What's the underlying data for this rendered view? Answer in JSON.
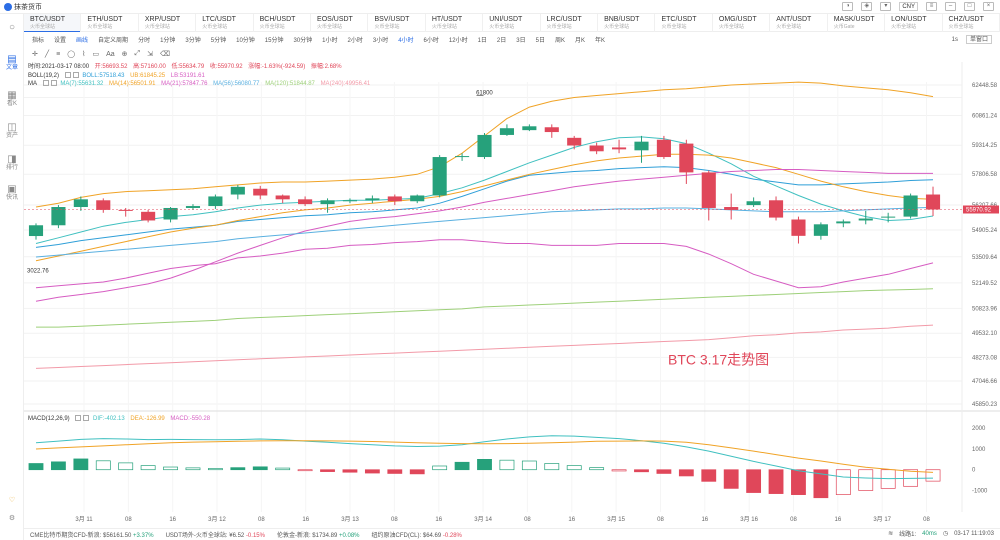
{
  "app": {
    "name": "抹茶货币"
  },
  "window": {
    "currency": "CNY"
  },
  "tabs": [
    {
      "name": "BTC/USDT",
      "sub": "火币全球站",
      "active": true
    },
    {
      "name": "ETH/USDT",
      "sub": "火币全球站"
    },
    {
      "name": "XRP/USDT",
      "sub": "火币全球站"
    },
    {
      "name": "LTC/USDT",
      "sub": "火币全球站"
    },
    {
      "name": "BCH/USDT",
      "sub": "火币全球站"
    },
    {
      "name": "EOS/USDT",
      "sub": "火币全球站"
    },
    {
      "name": "BSV/USDT",
      "sub": "火币全球站"
    },
    {
      "name": "HT/USDT",
      "sub": "火币全球站"
    },
    {
      "name": "UNI/USDT",
      "sub": "火币全球站"
    },
    {
      "name": "LRC/USDT",
      "sub": "火币全球站"
    },
    {
      "name": "BNB/USDT",
      "sub": "火币全球站"
    },
    {
      "name": "ETC/USDT",
      "sub": "火币全球站"
    },
    {
      "name": "OMG/USDT",
      "sub": "火币全球站"
    },
    {
      "name": "ANT/USDT",
      "sub": "火币全球站"
    },
    {
      "name": "MASK/USDT",
      "sub": "火币Gate"
    },
    {
      "name": "LON/USDT",
      "sub": "火币全球站"
    },
    {
      "name": "CHZ/USDT",
      "sub": "火币全球站"
    }
  ],
  "leftnav": [
    {
      "icon": "○",
      "label": ""
    },
    {
      "icon": "▤",
      "label": "文章",
      "active": true
    },
    {
      "icon": "▦",
      "label": "看K"
    },
    {
      "icon": "◫",
      "label": "资产"
    },
    {
      "icon": "◨",
      "label": "排行"
    },
    {
      "icon": "▣",
      "label": "快讯"
    }
  ],
  "toolbar": {
    "items": [
      "指标",
      "设置",
      "画线"
    ],
    "custom": "自定义周期",
    "timeframes": [
      "分时",
      "1分钟",
      "3分钟",
      "5分钟",
      "10分钟",
      "15分钟",
      "30分钟",
      "1小时",
      "2小时",
      "3小时",
      "4小时",
      "6小时",
      "12小时",
      "1日",
      "2日",
      "3日",
      "5日",
      "周K",
      "月K",
      "年K"
    ],
    "active_tf": "4小时",
    "right": {
      "interval": "1s",
      "mode": "单窗口"
    }
  },
  "drawtools": [
    "✛",
    "╱",
    "≡",
    "◯",
    "⌇",
    "▭",
    "Aa",
    "⊕",
    "⤢",
    "⇲",
    "⌫"
  ],
  "info": {
    "time": "时间:2021-03-17 08:00",
    "open": "开:56693.52",
    "high": "高:57160.00",
    "low": "低:55634.79",
    "close": "收:55970.92",
    "change": "涨幅:-1.63%(-924.59)",
    "amp": "振幅:2.68%",
    "boll_name": "BOLL(19,2)",
    "boll": "BOLL:57518.43",
    "ub": "UB:61845.25",
    "lb": "LB:53191.61",
    "ma_name": "MA",
    "ma7": "MA(7):55631.32",
    "ma14": "MA(14):56501.91",
    "ma21": "MA(21):57847.76",
    "ma56": "MA(56):56080.77",
    "ma120": "MA(120):51844.87",
    "ma240": "MA(240):49956.41",
    "macd_name": "MACD(12,26,9)",
    "dif": "DIF:-402.13",
    "dea": "DEA:-126.99",
    "macd": "MACD:-550.28"
  },
  "annotations": {
    "high_label": "61800",
    "low_label": "3022.76",
    "watermark": "BTC 3.17走势图",
    "current_price": "55970.92"
  },
  "colors": {
    "up": "#26a17b",
    "down": "#e0475a",
    "boll_mid": "#2f9fd8",
    "ub": "#f0a326",
    "lb": "#d65cc2",
    "ma7": "#40c0c0",
    "ma14": "#f0a326",
    "ma21": "#d65cc2",
    "ma56": "#5ab0e0",
    "ma120": "#9ed07a",
    "ma240": "#f29aa8"
  },
  "status": [
    {
      "label": "CME比特币期货CFD-新浪:",
      "price": "$56161.50",
      "chg": "+3.37%",
      "dir": "up"
    },
    {
      "label": "USDT场外-火币全球站:",
      "price": "¥6.52",
      "chg": "-0.15%",
      "dir": "dn"
    },
    {
      "label": "伦敦金-新浪:",
      "price": "$1734.89",
      "chg": "+0.08%",
      "dir": "up"
    },
    {
      "label": "纽约原油CFD(CL):",
      "price": "$64.69",
      "chg": "-0.28%",
      "dir": "dn"
    }
  ],
  "status_right": {
    "network": "线路1:",
    "latency": "40ms",
    "time": "03-17 11:19:03"
  },
  "chart_data": {
    "type": "candlestick",
    "y_ticks": [
      62448.58,
      61800,
      60861.24,
      59314.25,
      57806.58,
      56207.66,
      54905.24,
      53509.64,
      52149.52,
      50823.96,
      49532.1,
      48273.08,
      47046.66,
      45850.23
    ],
    "main_ylim": [
      45850.23,
      62448.58
    ],
    "x_ticks": [
      "3月 11",
      "08",
      "16",
      "3月 12",
      "08",
      "16",
      "3月 13",
      "08",
      "16",
      "3月 14",
      "08",
      "16",
      "3月 15",
      "08",
      "16",
      "3月 16",
      "08",
      "16",
      "3月 17",
      "08"
    ],
    "candles": [
      [
        54590,
        55150,
        54400,
        55250
      ],
      [
        55150,
        56100,
        55000,
        56200
      ],
      [
        56100,
        56500,
        55900,
        56650
      ],
      [
        56450,
        55950,
        55800,
        56550
      ],
      [
        55950,
        55900,
        55600,
        56050
      ],
      [
        55850,
        55400,
        55300,
        55950
      ],
      [
        55450,
        56050,
        55300,
        56100
      ],
      [
        56050,
        56150,
        55950,
        56250
      ],
      [
        56150,
        56650,
        56000,
        56750
      ],
      [
        56750,
        57150,
        56500,
        57250
      ],
      [
        57050,
        56700,
        56500,
        57200
      ],
      [
        56700,
        56500,
        56300,
        56750
      ],
      [
        56500,
        56250,
        56150,
        56650
      ],
      [
        56250,
        56450,
        55800,
        56550
      ],
      [
        56450,
        56450,
        56300,
        56550
      ],
      [
        56450,
        56550,
        56300,
        56700
      ],
      [
        56650,
        56400,
        56200,
        56750
      ],
      [
        56400,
        56700,
        56300,
        56750
      ],
      [
        56700,
        58700,
        56600,
        58800
      ],
      [
        58700,
        58750,
        58500,
        58900
      ],
      [
        58700,
        59850,
        58600,
        59950
      ],
      [
        59850,
        60200,
        59800,
        60400
      ],
      [
        60100,
        60300,
        60050,
        60400
      ],
      [
        60250,
        60000,
        59700,
        60400
      ],
      [
        59700,
        59300,
        59100,
        59800
      ],
      [
        59300,
        59000,
        58850,
        59450
      ],
      [
        59200,
        59100,
        58900,
        59600
      ],
      [
        59050,
        59500,
        58400,
        59800
      ],
      [
        59600,
        58700,
        58600,
        59800
      ],
      [
        59400,
        57900,
        57300,
        59600
      ],
      [
        57900,
        56050,
        55400,
        58000
      ],
      [
        56100,
        55950,
        55450,
        56800
      ],
      [
        56200,
        56400,
        56100,
        56600
      ],
      [
        56450,
        55550,
        55400,
        56650
      ],
      [
        55450,
        54600,
        54200,
        55600
      ],
      [
        54600,
        55200,
        54400,
        55300
      ],
      [
        55250,
        55350,
        55050,
        55450
      ],
      [
        55400,
        55500,
        55200,
        55900
      ],
      [
        55600,
        55600,
        55300,
        55800
      ],
      [
        55600,
        56700,
        55500,
        56800
      ],
      [
        56750,
        55970.92,
        55630,
        57160
      ]
    ],
    "boll_mid": [
      54000,
      54150,
      54350,
      54500,
      54650,
      54800,
      54950,
      55050,
      55150,
      55350,
      55450,
      55550,
      55650,
      55700,
      55800,
      55850,
      55950,
      56050,
      56300,
      56650,
      57050,
      57450,
      57750,
      57850,
      57950,
      58000,
      58100,
      58150,
      58200,
      58150,
      58000,
      57800,
      57550,
      57400,
      57250,
      57250,
      57300,
      57350,
      57400,
      57480,
      57518
    ],
    "ub": [
      56100,
      56300,
      56600,
      56800,
      56900,
      56950,
      57000,
      57050,
      57150,
      57250,
      57350,
      57400,
      57400,
      57450,
      57500,
      57550,
      57650,
      57800,
      58200,
      58900,
      59800,
      60700,
      61300,
      61600,
      61800,
      61900,
      62000,
      62100,
      62200,
      62250,
      62350,
      62450,
      62500,
      62550,
      62600,
      62550,
      62400,
      62300,
      62200,
      62050,
      61845
    ],
    "lb": [
      51900,
      52000,
      52100,
      52200,
      52400,
      52650,
      52900,
      53050,
      53150,
      53450,
      53550,
      53700,
      53900,
      53950,
      54100,
      54150,
      54250,
      54300,
      54400,
      54400,
      54300,
      54200,
      54200,
      54100,
      54100,
      54100,
      54200,
      54200,
      54200,
      54050,
      53650,
      53150,
      52600,
      52250,
      51900,
      51950,
      52200,
      52400,
      52600,
      52900,
      53191
    ],
    "ma7": [
      54200,
      54500,
      54800,
      55100,
      55300,
      55450,
      55600,
      55700,
      55850,
      56050,
      56200,
      56300,
      56350,
      56400,
      56450,
      56450,
      56500,
      56550,
      56800,
      57100,
      57500,
      57950,
      58400,
      58800,
      59200,
      59500,
      59700,
      59750,
      59650,
      59400,
      58900,
      58350,
      57700,
      57200,
      56700,
      56250,
      55900,
      55600,
      55400,
      55450,
      55631
    ],
    "ma14": [
      53300,
      53550,
      53800,
      54050,
      54300,
      54550,
      54800,
      55000,
      55150,
      55400,
      55600,
      55800,
      55950,
      56050,
      56200,
      56300,
      56400,
      56500,
      56650,
      56900,
      57200,
      57500,
      57800,
      58050,
      58300,
      58500,
      58650,
      58750,
      58850,
      58850,
      58800,
      58650,
      58400,
      58150,
      57800,
      57450,
      57150,
      56900,
      56700,
      56550,
      56501
    ],
    "ma21": [
      51200,
      51400,
      51550,
      51700,
      51900,
      52100,
      52400,
      52800,
      53250,
      53700,
      54100,
      54500,
      54850,
      55100,
      55350,
      55500,
      55600,
      55750,
      55900,
      56100,
      56350,
      56550,
      56750,
      56950,
      57150,
      57300,
      57450,
      57550,
      57650,
      57750,
      57850,
      57950,
      58000,
      58050,
      58050,
      58000,
      57950,
      57900,
      57850,
      57850,
      57847
    ],
    "ma56": [
      53500,
      53600,
      53700,
      53800,
      53900,
      54000,
      54100,
      54200,
      54300,
      54450,
      54550,
      54650,
      54750,
      54850,
      54950,
      55050,
      55150,
      55250,
      55350,
      55450,
      55550,
      55650,
      55750,
      55850,
      55900,
      55950,
      56000,
      56000,
      56050,
      56050,
      56000,
      55950,
      55900,
      55850,
      55850,
      55850,
      55900,
      55950,
      56000,
      56050,
      56080
    ],
    "ma120": [
      49850,
      49850,
      49900,
      49950,
      50000,
      50050,
      50100,
      50150,
      50200,
      50300,
      50350,
      50400,
      50450,
      50500,
      50550,
      50600,
      50650,
      50700,
      50750,
      50800,
      50900,
      50950,
      51000,
      51050,
      51100,
      51150,
      51200,
      51250,
      51300,
      51350,
      51400,
      51450,
      51500,
      51550,
      51600,
      51650,
      51700,
      51750,
      51780,
      51810,
      51844
    ],
    "ma240": [
      47700,
      47750,
      47800,
      47850,
      47900,
      47950,
      48000,
      48050,
      48100,
      48150,
      48200,
      48250,
      48300,
      48350,
      48400,
      48450,
      48500,
      48550,
      48600,
      48650,
      48700,
      48750,
      48800,
      48850,
      48900,
      48950,
      49000,
      49050,
      49100,
      49150,
      49200,
      49300,
      49400,
      49450,
      49550,
      49600,
      49700,
      49750,
      49800,
      49900,
      49956
    ],
    "macd_ticks": [
      2000,
      1000,
      0,
      -1000
    ],
    "macd_ylim": [
      -1700,
      2300
    ],
    "macd_hist": [
      300,
      380,
      520,
      430,
      330,
      200,
      130,
      90,
      60,
      100,
      140,
      80,
      -40,
      -90,
      -120,
      -160,
      -180,
      -200,
      180,
      360,
      500,
      460,
      420,
      300,
      200,
      100,
      -60,
      -100,
      -180,
      -300,
      -560,
      -900,
      -1100,
      -1150,
      -1200,
      -1350,
      -1200,
      -1000,
      -900,
      -800,
      -550
    ],
    "dif": [
      1300,
      1380,
      1460,
      1500,
      1480,
      1450,
      1460,
      1450,
      1440,
      1450,
      1480,
      1440,
      1380,
      1320,
      1260,
      1200,
      1150,
      1120,
      1140,
      1200,
      1350,
      1480,
      1580,
      1640,
      1620,
      1560,
      1500,
      1400,
      1280,
      1100,
      900,
      650,
      400,
      180,
      -50,
      -200,
      -350,
      -400,
      -430,
      -420,
      -402
    ],
    "dea": [
      1000,
      1050,
      1100,
      1150,
      1200,
      1250,
      1300,
      1330,
      1350,
      1370,
      1390,
      1400,
      1400,
      1390,
      1380,
      1360,
      1330,
      1300,
      1280,
      1260,
      1250,
      1260,
      1280,
      1300,
      1330,
      1370,
      1380,
      1390,
      1380,
      1320,
      1200,
      1050,
      900,
      730,
      560,
      420,
      260,
      120,
      20,
      -70,
      -127
    ],
    "grid": true
  }
}
